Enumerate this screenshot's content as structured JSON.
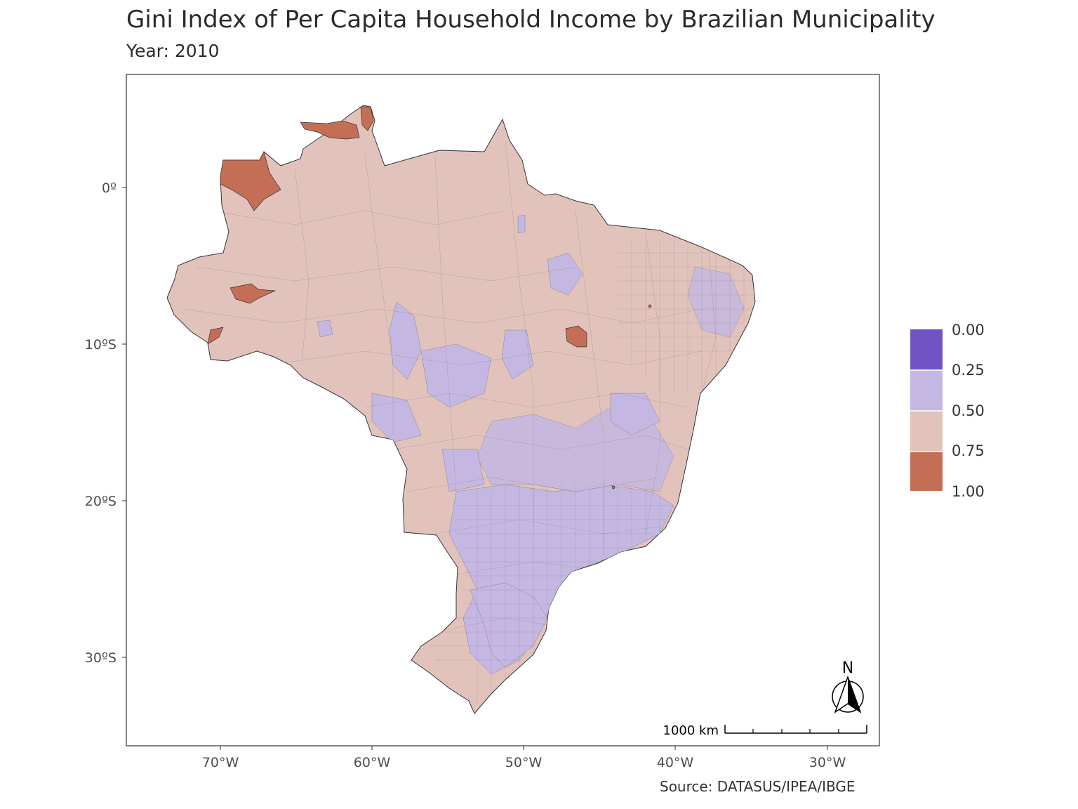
{
  "title": "Gini Index of Per Capita Household Income by Brazilian Municipality",
  "subtitle": "Year: 2010",
  "caption": "Source: DATASUS/IPEA/IBGE",
  "map": {
    "y_ticks": [
      "0º",
      "10ºS",
      "20ºS",
      "30ºS"
    ],
    "x_ticks": [
      "70°W",
      "60°W",
      "50°W",
      "40°W",
      "30°W"
    ],
    "scale_bar_label": "1000 km",
    "north_arrow_label": "N"
  },
  "legend": {
    "breaks": [
      "0.00",
      "0.25",
      "0.50",
      "0.75",
      "1.00"
    ],
    "colors": [
      "#7154c4",
      "#c4b8e2",
      "#e2c3bc",
      "#c46e55"
    ]
  },
  "colors": {
    "main_fill": "#e2c3bc",
    "low_fill": "#c4b8e2",
    "high_fill": "#c46e55",
    "border": "#555555"
  }
}
